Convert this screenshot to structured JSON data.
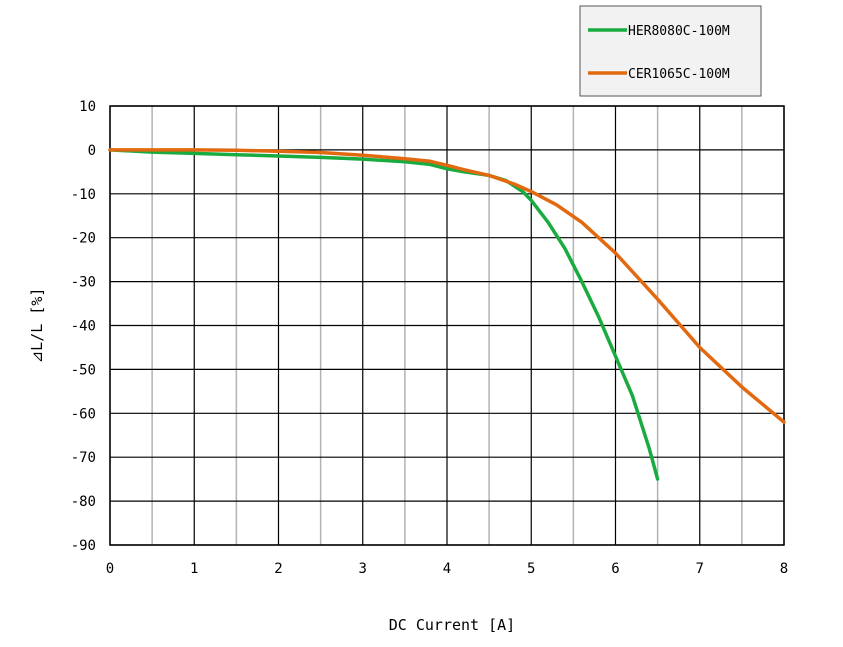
{
  "chart_data": {
    "type": "line",
    "title": "",
    "xlabel": "DC Current [A]",
    "ylabel": "⊿L/L [%]",
    "xlim": [
      0,
      8
    ],
    "ylim": [
      -90,
      10
    ],
    "x_ticks": [
      0,
      1,
      2,
      3,
      4,
      5,
      6,
      7,
      8
    ],
    "y_ticks": [
      10,
      0,
      -10,
      -20,
      -30,
      -40,
      -50,
      -60,
      -70,
      -80,
      -90
    ],
    "x_minor_step": 0.5,
    "grid": true,
    "legend_position": "top-right, above plot",
    "series": [
      {
        "name": "HER8080C-100M",
        "color": "#1aab40",
        "x": [
          0,
          0.5,
          1,
          1.5,
          2,
          2.5,
          3,
          3.5,
          3.8,
          4.0,
          4.2,
          4.5,
          4.7,
          4.9,
          5.0,
          5.2,
          5.4,
          5.6,
          5.8,
          6.0,
          6.2,
          6.4,
          6.5
        ],
        "y": [
          0,
          -0.5,
          -0.8,
          -1.1,
          -1.4,
          -1.7,
          -2.1,
          -2.7,
          -3.3,
          -4.3,
          -5.0,
          -5.8,
          -7.0,
          -9.5,
          -11.5,
          -16.5,
          -22.5,
          -30,
          -38,
          -47,
          -56,
          -68,
          -75
        ]
      },
      {
        "name": "CER1065C-100M",
        "color": "#e2690f",
        "x": [
          0,
          0.5,
          1,
          1.5,
          2,
          2.5,
          3,
          3.5,
          3.8,
          4.0,
          4.2,
          4.5,
          4.8,
          5.0,
          5.3,
          5.6,
          6.0,
          6.5,
          7.0,
          7.5,
          8.0
        ],
        "y": [
          0,
          0,
          0,
          -0.1,
          -0.3,
          -0.6,
          -1.2,
          -2.0,
          -2.6,
          -3.5,
          -4.5,
          -5.8,
          -7.8,
          -9.5,
          -12.5,
          -16.5,
          -23.5,
          -34,
          -45,
          -54,
          -62
        ]
      }
    ]
  }
}
